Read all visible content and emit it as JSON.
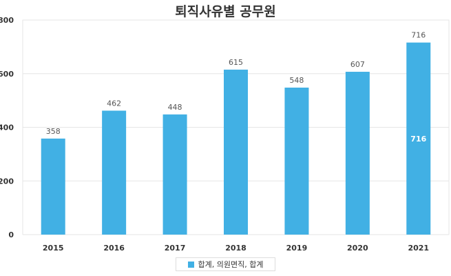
{
  "chart_data": {
    "type": "bar",
    "title": "퇴직사유별  공무원",
    "categories": [
      "2015",
      "2016",
      "2017",
      "2018",
      "2019",
      "2020",
      "2021"
    ],
    "series": [
      {
        "name": "합계, 의원면직, 합계",
        "values": [
          358,
          462,
          448,
          615,
          548,
          607,
          716
        ]
      }
    ],
    "ylim": [
      0,
      800
    ],
    "yticks": [
      0,
      200,
      400,
      600,
      800
    ],
    "grid": true,
    "legend": "bottom-center",
    "highlight_inside_label": {
      "category": "2021",
      "value": "716"
    },
    "colors": {
      "bar": "#41b0e4",
      "grid": "#e6e6e6",
      "axis_text": "#333333",
      "label": "#555555"
    }
  }
}
